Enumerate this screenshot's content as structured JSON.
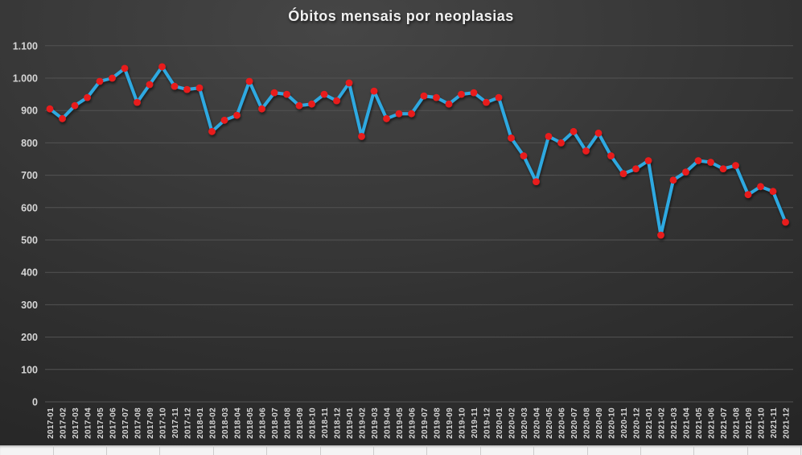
{
  "chart_data": {
    "type": "line",
    "title": "Óbitos mensais por neoplasias",
    "xlabel": "",
    "ylabel": "",
    "legend": "none",
    "grid": true,
    "ylim": [
      0,
      1100
    ],
    "y_ticks": [
      0,
      100,
      200,
      300,
      400,
      500,
      600,
      700,
      800,
      900,
      1000,
      1100
    ],
    "y_tick_labels": [
      "0",
      "100",
      "200",
      "300",
      "400",
      "500",
      "600",
      "700",
      "800",
      "900",
      "1.000",
      "1.100"
    ],
    "categories": [
      "2017-01",
      "2017-02",
      "2017-03",
      "2017-04",
      "2017-05",
      "2017-06",
      "2017-07",
      "2017-08",
      "2017-09",
      "2017-10",
      "2017-11",
      "2017-12",
      "2018-01",
      "2018-02",
      "2018-03",
      "2018-04",
      "2018-05",
      "2018-06",
      "2018-07",
      "2018-08",
      "2018-09",
      "2018-10",
      "2018-11",
      "2018-12",
      "2019-01",
      "2019-02",
      "2019-03",
      "2019-04",
      "2019-05",
      "2019-06",
      "2019-07",
      "2019-08",
      "2019-09",
      "2019-10",
      "2019-11",
      "2019-12",
      "2020-01",
      "2020-02",
      "2020-03",
      "2020-04",
      "2020-05",
      "2020-06",
      "2020-07",
      "2020-08",
      "2020-09",
      "2020-10",
      "2020-11",
      "2020-12",
      "2021-01",
      "2021-02",
      "2021-03",
      "2021-04",
      "2021-05",
      "2021-06",
      "2021-07",
      "2021-08",
      "2021-09",
      "2021-10",
      "2021-11",
      "2021-12"
    ],
    "series": [
      {
        "name": "Óbitos mensais por neoplasias",
        "values": [
          905,
          875,
          915,
          940,
          990,
          1000,
          1030,
          925,
          980,
          1035,
          975,
          965,
          970,
          835,
          870,
          885,
          990,
          905,
          955,
          950,
          915,
          920,
          950,
          930,
          985,
          820,
          960,
          875,
          890,
          890,
          945,
          940,
          920,
          950,
          955,
          925,
          940,
          815,
          760,
          680,
          820,
          800,
          835,
          775,
          830,
          760,
          705,
          720,
          745,
          515,
          685,
          710,
          745,
          740,
          720,
          730,
          640,
          665,
          650,
          555
        ]
      }
    ],
    "colors": {
      "line": "#2da9e1",
      "marker": "#e81b1b",
      "title_text": "#f0f0f0",
      "axis_text": "#d6d6d6",
      "gridline": "#535353",
      "background_center": "#464646",
      "background_mid": "#323232",
      "background_edge": "#1e1e1e",
      "sheet_strip_bg": "#f4f4f4",
      "sheet_strip_line": "#cccccc"
    }
  }
}
